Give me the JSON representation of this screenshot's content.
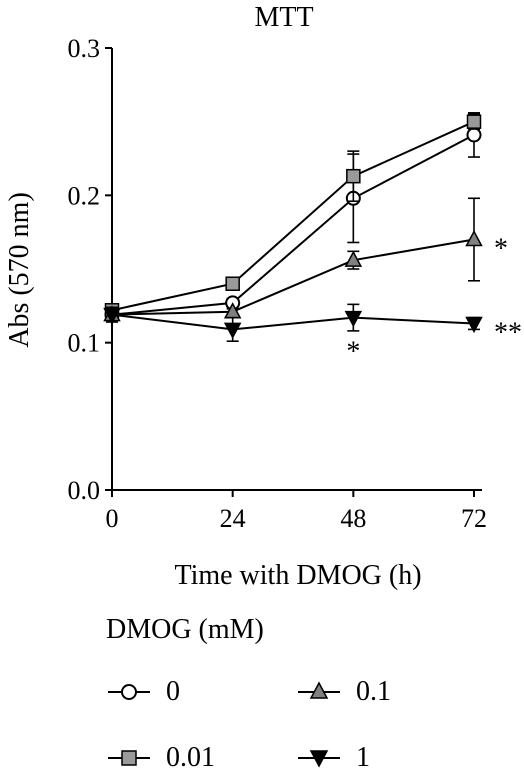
{
  "colors": {
    "line": "#000000",
    "series_0": "#ffffff",
    "series_001": "#9a9a9a",
    "series_01": "#808080",
    "series_1": "#000000"
  },
  "chart_data": {
    "type": "line",
    "title": "MTT",
    "xlabel": "Time with DMOG (h)",
    "ylabel": "Abs (570 nm)",
    "x": [
      0,
      24,
      48,
      72
    ],
    "x_ticks": [
      "0",
      "24",
      "48",
      "72"
    ],
    "y_ticks": [
      "0.0",
      "0.1",
      "0.2",
      "0.3"
    ],
    "xlim": [
      0,
      72
    ],
    "ylim": [
      0,
      0.3
    ],
    "legend_title": "DMOG (mM)",
    "series": [
      {
        "name": "0",
        "marker": "circle-open",
        "values": [
          0.119,
          0.127,
          0.198,
          0.241
        ],
        "errors": [
          0.003,
          0.003,
          0.03,
          0.015
        ]
      },
      {
        "name": "0.01",
        "marker": "square-gray",
        "values": [
          0.122,
          0.14,
          0.213,
          0.25
        ],
        "errors": [
          0.002,
          0.002,
          0.017,
          0.005
        ]
      },
      {
        "name": "0.1",
        "marker": "triangle-up-gray",
        "values": [
          0.119,
          0.121,
          0.156,
          0.17
        ],
        "errors": [
          0.002,
          0.002,
          0.006,
          0.028
        ]
      },
      {
        "name": "1",
        "marker": "triangle-down-black",
        "values": [
          0.119,
          0.109,
          0.117,
          0.113
        ],
        "errors": [
          0.005,
          0.008,
          0.009,
          0.004
        ]
      }
    ],
    "annotations": [
      {
        "text": "*",
        "x": 48,
        "y": 0.1
      },
      {
        "text": "*",
        "x": 72,
        "y": 0.17
      },
      {
        "text": "**",
        "x": 72,
        "y": 0.113
      }
    ]
  }
}
